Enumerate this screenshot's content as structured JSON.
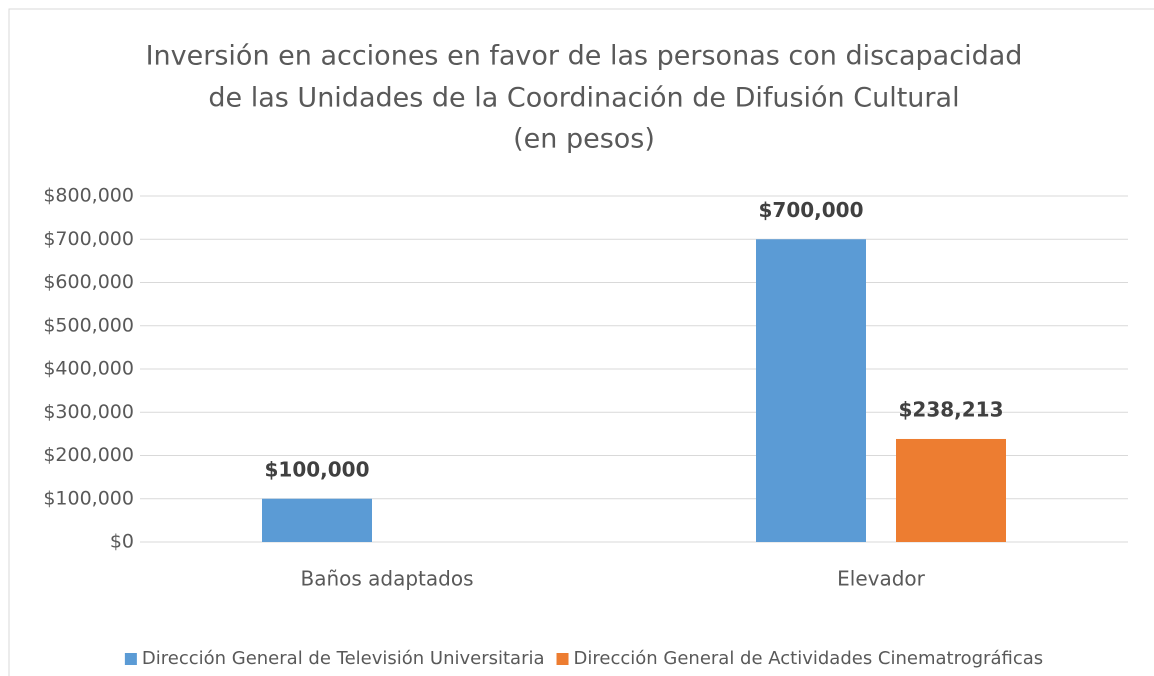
{
  "chart_data": {
    "type": "bar",
    "title": [
      "Inversión en acciones en favor de las personas con discapacidad",
      "de las Unidades de la Coordinación de Difusión Cultural",
      "(en pesos)"
    ],
    "categories": [
      "Baños adaptados",
      "Elevador"
    ],
    "series": [
      {
        "name": "Dirección General de Televisión Universitaria",
        "color": "#5b9bd5",
        "values": [
          100000,
          700000
        ],
        "value_labels": [
          "$100,000",
          "$700,000"
        ]
      },
      {
        "name": "Dirección General de Actividades Cinematrográficas",
        "color": "#ed7d31",
        "values": [
          null,
          238213
        ],
        "value_labels": [
          null,
          "$238,213"
        ]
      }
    ],
    "ylim": [
      0,
      800000
    ],
    "yticks": [
      {
        "value": 0,
        "label": "$0"
      },
      {
        "value": 100000,
        "label": "$100,000"
      },
      {
        "value": 200000,
        "label": "$200,000"
      },
      {
        "value": 300000,
        "label": "$300,000"
      },
      {
        "value": 400000,
        "label": "$400,000"
      },
      {
        "value": 500000,
        "label": "$500,000"
      },
      {
        "value": 600000,
        "label": "$600,000"
      },
      {
        "value": 700000,
        "label": "$700,000"
      },
      {
        "value": 800000,
        "label": "$800,000"
      }
    ],
    "grid": true,
    "legend": "bottom"
  }
}
